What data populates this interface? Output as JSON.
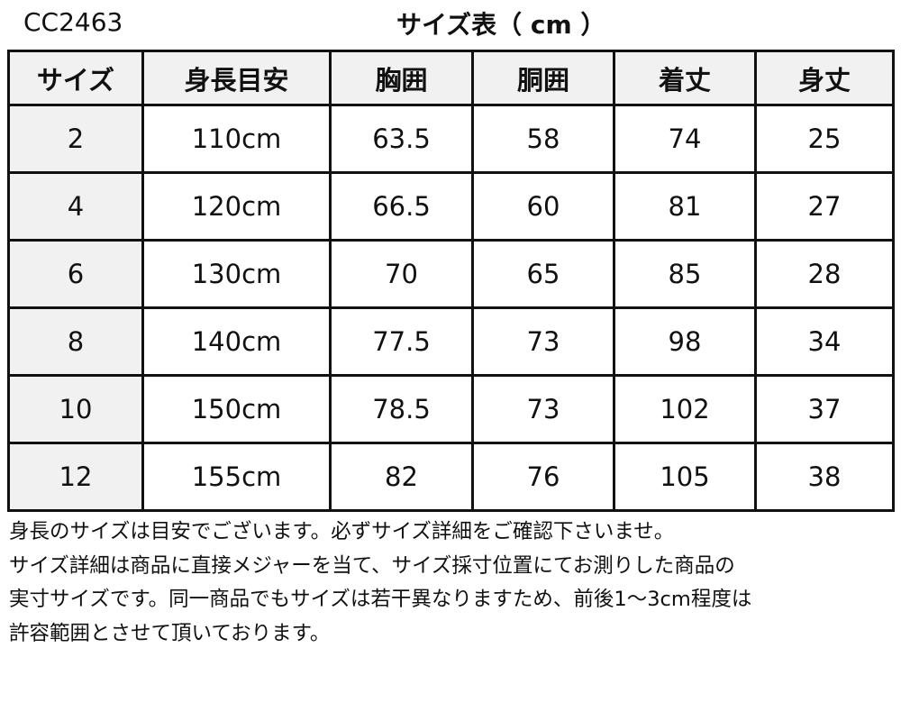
{
  "product_code": "CC2463",
  "title": "サイズ表（ cm ）",
  "table": {
    "headers": [
      "サイズ",
      "身長目安",
      "胸囲",
      "胴囲",
      "着丈",
      "身丈"
    ],
    "rows": [
      [
        "2",
        "110cm",
        "63.5",
        "58",
        "74",
        "25"
      ],
      [
        "4",
        "120cm",
        "66.5",
        "60",
        "81",
        "27"
      ],
      [
        "6",
        "130cm",
        "70",
        "65",
        "85",
        "28"
      ],
      [
        "8",
        "140cm",
        "77.5",
        "73",
        "98",
        "34"
      ],
      [
        "10",
        "150cm",
        "78.5",
        "73",
        "102",
        "37"
      ],
      [
        "12",
        "155cm",
        "82",
        "76",
        "105",
        "38"
      ]
    ]
  },
  "notes": [
    "身長のサイズは目安でございます。必ずサイズ詳細をご確認下さいませ。",
    "サイズ詳細は商品に直接メジャーを当て、サイズ採寸位置にてお測りした商品の",
    "実寸サイズです。同一商品でもサイズは若干異なりますため、前後1～3cm程度は",
    "許容範囲とさせて頂いております。"
  ]
}
